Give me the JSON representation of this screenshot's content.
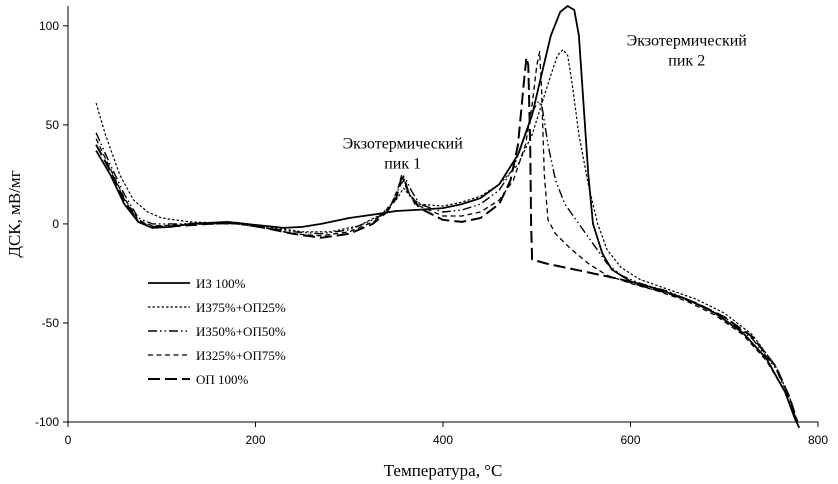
{
  "chart_data": {
    "type": "line",
    "title": "",
    "xlabel": "Температура, °C",
    "ylabel": "ДСК, мВ/мг",
    "xlim": [
      0,
      800
    ],
    "ylim": [
      -100,
      110
    ],
    "xticks": [
      0,
      200,
      400,
      600,
      800
    ],
    "yticks": [
      -100,
      -50,
      0,
      50,
      100
    ],
    "grid": false,
    "legend_position": "bottom-left",
    "annotations": [
      {
        "id": "peak1",
        "lines": [
          "Экзотермический",
          "пик 1"
        ],
        "x": 357,
        "y": 38
      },
      {
        "id": "peak2",
        "lines": [
          "Экзотермический",
          "пик 2"
        ],
        "x": 660,
        "y": 90
      }
    ],
    "series": [
      {
        "name": "ИЗ 100%",
        "dash": "solid",
        "points": [
          [
            30,
            37
          ],
          [
            45,
            25
          ],
          [
            60,
            10
          ],
          [
            75,
            1
          ],
          [
            90,
            -2
          ],
          [
            110,
            -1.5
          ],
          [
            130,
            0
          ],
          [
            150,
            0.5
          ],
          [
            170,
            1
          ],
          [
            190,
            0
          ],
          [
            210,
            -1
          ],
          [
            230,
            -2
          ],
          [
            250,
            -1.5
          ],
          [
            270,
            0
          ],
          [
            300,
            3
          ],
          [
            330,
            5
          ],
          [
            350,
            6.5
          ],
          [
            370,
            7
          ],
          [
            400,
            8
          ],
          [
            420,
            10
          ],
          [
            440,
            13
          ],
          [
            460,
            20
          ],
          [
            480,
            35
          ],
          [
            495,
            55
          ],
          [
            505,
            75
          ],
          [
            515,
            95
          ],
          [
            525,
            107
          ],
          [
            533,
            110
          ],
          [
            540,
            108
          ],
          [
            545,
            95
          ],
          [
            550,
            60
          ],
          [
            555,
            25
          ],
          [
            560,
            0
          ],
          [
            570,
            -15
          ],
          [
            580,
            -23
          ],
          [
            600,
            -29
          ],
          [
            630,
            -33
          ],
          [
            660,
            -38
          ],
          [
            690,
            -45
          ],
          [
            720,
            -55
          ],
          [
            745,
            -68
          ],
          [
            765,
            -85
          ],
          [
            775,
            -98
          ],
          [
            780,
            -103
          ]
        ]
      },
      {
        "name": "ИЗ75%+ОП25%",
        "dash": "fine-dot",
        "points": [
          [
            30,
            61
          ],
          [
            40,
            45
          ],
          [
            55,
            25
          ],
          [
            70,
            12
          ],
          [
            85,
            6
          ],
          [
            100,
            3
          ],
          [
            130,
            1
          ],
          [
            160,
            0.5
          ],
          [
            190,
            0
          ],
          [
            220,
            -2
          ],
          [
            250,
            -4
          ],
          [
            280,
            -4
          ],
          [
            310,
            -1
          ],
          [
            335,
            5
          ],
          [
            350,
            12
          ],
          [
            358,
            18
          ],
          [
            365,
            14
          ],
          [
            375,
            10
          ],
          [
            400,
            9
          ],
          [
            420,
            11
          ],
          [
            440,
            14
          ],
          [
            460,
            20
          ],
          [
            480,
            30
          ],
          [
            495,
            45
          ],
          [
            505,
            60
          ],
          [
            515,
            75
          ],
          [
            522,
            85
          ],
          [
            528,
            88
          ],
          [
            533,
            85
          ],
          [
            538,
            70
          ],
          [
            545,
            45
          ],
          [
            555,
            20
          ],
          [
            565,
            0
          ],
          [
            575,
            -13
          ],
          [
            590,
            -22
          ],
          [
            610,
            -28
          ],
          [
            640,
            -33
          ],
          [
            670,
            -38
          ],
          [
            700,
            -45
          ],
          [
            730,
            -56
          ],
          [
            755,
            -72
          ],
          [
            770,
            -88
          ],
          [
            778,
            -100
          ]
        ]
      },
      {
        "name": "ИЗ50%+ОП50%",
        "dash": "dash-dot-dot",
        "points": [
          [
            30,
            46
          ],
          [
            45,
            30
          ],
          [
            60,
            15
          ],
          [
            75,
            3
          ],
          [
            90,
            0
          ],
          [
            120,
            0
          ],
          [
            150,
            0.5
          ],
          [
            180,
            0
          ],
          [
            210,
            -2
          ],
          [
            240,
            -4
          ],
          [
            270,
            -5
          ],
          [
            300,
            -3
          ],
          [
            330,
            3
          ],
          [
            345,
            10
          ],
          [
            355,
            20
          ],
          [
            360,
            23
          ],
          [
            366,
            17
          ],
          [
            375,
            10
          ],
          [
            400,
            6
          ],
          [
            420,
            7
          ],
          [
            440,
            10
          ],
          [
            460,
            17
          ],
          [
            475,
            28
          ],
          [
            488,
            45
          ],
          [
            497,
            58
          ],
          [
            502,
            62
          ],
          [
            506,
            58
          ],
          [
            512,
            40
          ],
          [
            520,
            22
          ],
          [
            530,
            10
          ],
          [
            545,
            0
          ],
          [
            560,
            -10
          ],
          [
            575,
            -20
          ],
          [
            590,
            -26
          ],
          [
            610,
            -30
          ],
          [
            640,
            -34
          ],
          [
            670,
            -40
          ],
          [
            700,
            -47
          ],
          [
            730,
            -58
          ],
          [
            755,
            -73
          ],
          [
            770,
            -89
          ],
          [
            778,
            -101
          ]
        ]
      },
      {
        "name": "ИЗ25%+ОП75%",
        "dash": "dashed",
        "points": [
          [
            30,
            43
          ],
          [
            45,
            28
          ],
          [
            60,
            13
          ],
          [
            75,
            2
          ],
          [
            90,
            -1
          ],
          [
            120,
            -0.5
          ],
          [
            150,
            0
          ],
          [
            180,
            0
          ],
          [
            210,
            -2
          ],
          [
            240,
            -5
          ],
          [
            270,
            -6
          ],
          [
            300,
            -4
          ],
          [
            330,
            2
          ],
          [
            345,
            10
          ],
          [
            352,
            18
          ],
          [
            356,
            25
          ],
          [
            361,
            18
          ],
          [
            370,
            10
          ],
          [
            400,
            4
          ],
          [
            420,
            4
          ],
          [
            440,
            6
          ],
          [
            460,
            12
          ],
          [
            475,
            22
          ],
          [
            488,
            40
          ],
          [
            495,
            60
          ],
          [
            500,
            80
          ],
          [
            503,
            87
          ],
          [
            505,
            70
          ],
          [
            508,
            25
          ],
          [
            512,
            2
          ],
          [
            520,
            -5
          ],
          [
            535,
            -12
          ],
          [
            555,
            -20
          ],
          [
            575,
            -26
          ],
          [
            600,
            -30
          ],
          [
            630,
            -34
          ],
          [
            660,
            -39
          ],
          [
            690,
            -46
          ],
          [
            720,
            -56
          ],
          [
            745,
            -69
          ],
          [
            765,
            -85
          ],
          [
            777,
            -100
          ]
        ]
      },
      {
        "name": "ОП 100%",
        "dash": "long-dash",
        "points": [
          [
            30,
            40
          ],
          [
            45,
            27
          ],
          [
            60,
            12
          ],
          [
            75,
            1
          ],
          [
            90,
            -1.5
          ],
          [
            120,
            -1
          ],
          [
            150,
            0
          ],
          [
            180,
            0.5
          ],
          [
            210,
            -2
          ],
          [
            240,
            -5
          ],
          [
            270,
            -7
          ],
          [
            300,
            -5
          ],
          [
            325,
            0
          ],
          [
            340,
            6
          ],
          [
            350,
            13
          ],
          [
            355,
            22
          ],
          [
            358,
            24
          ],
          [
            363,
            16
          ],
          [
            375,
            8
          ],
          [
            400,
            2
          ],
          [
            420,
            1
          ],
          [
            440,
            3
          ],
          [
            460,
            10
          ],
          [
            472,
            22
          ],
          [
            480,
            40
          ],
          [
            486,
            70
          ],
          [
            489,
            84
          ],
          [
            491,
            80
          ],
          [
            493,
            40
          ],
          [
            494,
            0
          ],
          [
            495,
            -18
          ],
          [
            510,
            -20
          ],
          [
            530,
            -22
          ],
          [
            550,
            -24
          ],
          [
            570,
            -26
          ],
          [
            590,
            -28
          ],
          [
            610,
            -31
          ],
          [
            640,
            -35
          ],
          [
            670,
            -40
          ],
          [
            700,
            -47
          ],
          [
            730,
            -57
          ],
          [
            755,
            -72
          ],
          [
            770,
            -88
          ],
          [
            778,
            -100
          ]
        ]
      }
    ]
  }
}
